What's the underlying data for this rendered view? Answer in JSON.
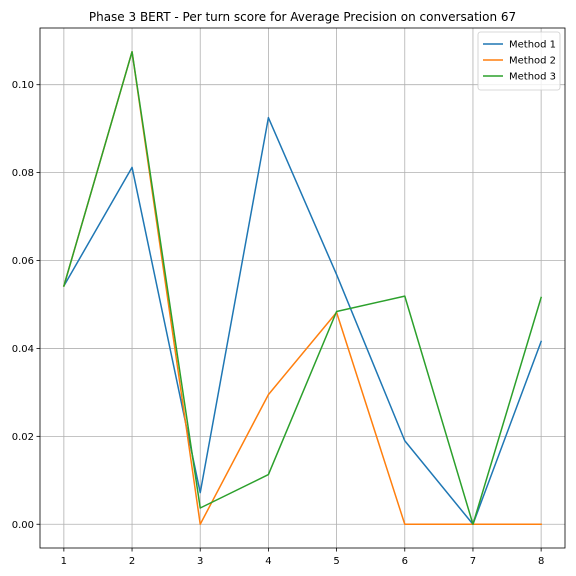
{
  "chart_data": {
    "type": "line",
    "title": "Phase 3 BERT - Per turn score for Average Precision on conversation 67",
    "xlabel": "",
    "ylabel": "",
    "x": [
      1,
      2,
      3,
      4,
      5,
      6,
      7,
      8
    ],
    "x_ticks": [
      "1",
      "2",
      "3",
      "4",
      "5",
      "6",
      "7",
      "8"
    ],
    "y_ticks": [
      "0.00",
      "0.02",
      "0.04",
      "0.06",
      "0.08",
      "0.10"
    ],
    "xlim": [
      0.65,
      8.35
    ],
    "ylim": [
      -0.0054,
      0.1129
    ],
    "grid": true,
    "legend_position": "upper right",
    "series": [
      {
        "name": "Method 1",
        "color": "#1f77b4",
        "values": [
          0.0542,
          0.0812,
          0.0072,
          0.0925,
          0.0568,
          0.019,
          0.0,
          0.0416
        ]
      },
      {
        "name": "Method 2",
        "color": "#ff7f0e",
        "values": [
          0.0542,
          0.1075,
          0.0,
          0.0295,
          0.0482,
          0.0,
          0.0,
          0.0
        ]
      },
      {
        "name": "Method 3",
        "color": "#2ca02c",
        "values": [
          0.0542,
          0.1075,
          0.0037,
          0.0113,
          0.0484,
          0.0519,
          0.0,
          0.0516
        ]
      }
    ]
  }
}
